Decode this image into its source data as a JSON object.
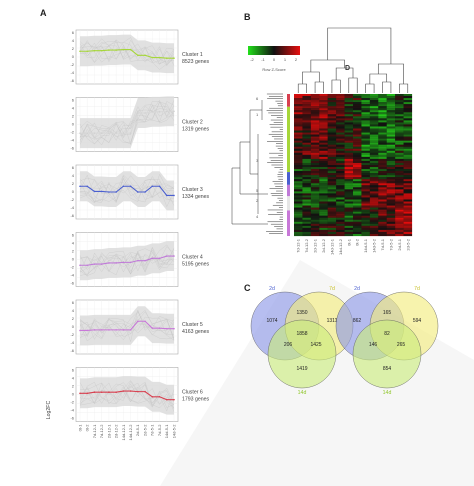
{
  "panels": {
    "a": {
      "letter": "A"
    },
    "b": {
      "letter": "B"
    },
    "c": {
      "letter": "C"
    }
  },
  "cluster_ylabel": "Log2FC",
  "cluster_ticks": [
    "6",
    "4",
    "2",
    "0",
    "-2",
    "-4",
    "-6"
  ],
  "xlabels": [
    "0t-1",
    "0t-2",
    "7d-12-1",
    "7d-12-2",
    "2d-12-1",
    "2d-12-2",
    "14d-12-1",
    "14d-12-2",
    "2d-5-1",
    "2d-5-2",
    "7d-5-1",
    "7d-5-2",
    "14d-5-1",
    "14d-5-2"
  ],
  "clusters": [
    {
      "name": "Cluster 1",
      "genes": "8523 genes",
      "color": "#a6d63a",
      "profile": [
        1.0,
        1.0,
        1.1,
        1.1,
        1.2,
        1.2,
        1.3,
        1.3,
        0.3,
        0.3,
        -0.1,
        -0.1,
        -0.2,
        -0.2
      ]
    },
    {
      "name": "Cluster 2",
      "genes": "1319 genes",
      "color": "#e0e0e0",
      "profile": [
        -1.5,
        -1.5,
        -1.5,
        -1.5,
        -1.5,
        -1.5,
        -1.5,
        -1.5,
        2.0,
        2.0,
        2.2,
        2.2,
        2.3,
        2.3
      ]
    },
    {
      "name": "Cluster 3",
      "genes": "1334 genes",
      "color": "#4a5fd0",
      "profile": [
        1.0,
        1.0,
        0.1,
        0.1,
        0.0,
        0.0,
        1.0,
        1.0,
        0.0,
        0.0,
        1.0,
        1.0,
        -0.6,
        -0.6
      ]
    },
    {
      "name": "Cluster 4",
      "genes": "5195 genes",
      "color": "#c07ad8",
      "profile": [
        -1.0,
        -1.0,
        -0.8,
        -0.8,
        -0.6,
        -0.6,
        -0.5,
        -0.5,
        -0.2,
        -0.2,
        0.2,
        0.2,
        0.6,
        0.6
      ]
    },
    {
      "name": "Cluster 5",
      "genes": "4163 genes",
      "color": "#c878d8",
      "profile": [
        -0.6,
        -0.6,
        -0.5,
        -0.5,
        -0.5,
        -0.5,
        -0.5,
        -0.5,
        1.0,
        1.0,
        -0.2,
        -0.2,
        -0.3,
        -0.3
      ]
    },
    {
      "name": "Cluster 6",
      "genes": "1793 genes",
      "color": "#d84050",
      "profile": [
        0.2,
        0.2,
        0.4,
        0.4,
        0.4,
        0.4,
        0.6,
        0.6,
        0.5,
        0.5,
        -0.4,
        -0.4,
        -0.9,
        -0.9
      ]
    }
  ],
  "heatmap": {
    "legend_title": "Row Z-Score",
    "legend_ticks": [
      "-2",
      "-1",
      "0",
      "1",
      "2"
    ],
    "columns": [
      "7d-12-1",
      "7d-12-2",
      "2d-12-1",
      "2d-12-2",
      "14d-12-1",
      "14d-12-2",
      "0t-1",
      "0t-2",
      "14d-5-1",
      "14d-5-2",
      "7d-5-1",
      "7d-5-2",
      "2d-5-1",
      "2d-5-2"
    ],
    "top_label": "D",
    "row_cluster_labels": [
      "6",
      "1",
      "3",
      "5",
      "2",
      "4"
    ],
    "colors": {
      "low": "#22c21e",
      "mid": "#111111",
      "high": "#e01414"
    }
  },
  "venn_left": {
    "labels": [
      "2d",
      "7d",
      "14d"
    ],
    "colors": [
      "#4a5fd0",
      "#c9c12a",
      "#8fc62a"
    ],
    "values": {
      "a": "1074",
      "b": "1311",
      "c": "1419",
      "ab": "1350",
      "ac": "206",
      "bc": "1425",
      "abc": "1858"
    }
  },
  "venn_right": {
    "labels": [
      "2d",
      "7d",
      "14d"
    ],
    "colors": [
      "#4a5fd0",
      "#c9c12a",
      "#8fc62a"
    ],
    "values": {
      "a": "862",
      "b": "594",
      "c": "854",
      "ab": "165",
      "ac": "146",
      "bc": "265",
      "abc": "82"
    }
  }
}
